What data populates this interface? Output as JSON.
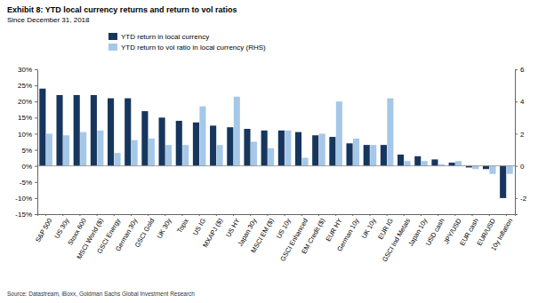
{
  "chart_data": {
    "type": "bar",
    "title": "Exhibit 8: YTD local currency returns and return to vol ratios",
    "subtitle": "Since December 31, 2018",
    "source": "Source: Datastream, iBoxx, Goldman Sachs Global Investment Research",
    "categories": [
      "S&P 500",
      "US 30y",
      "Stoxx 600",
      "MSCI World ($)",
      "GSCI Energy",
      "German 30y",
      "GSCI Gold",
      "UK 30y",
      "Topix",
      "US IG",
      "MXAPJ ($)",
      "US HY",
      "Japan 30y",
      "MSCI EM ($)",
      "US 10y",
      "GSCI Enhanced",
      "EM Credit ($)",
      "EUR HY",
      "German 10y",
      "UK 10y",
      "EUR IG",
      "GSCI Ind Metals",
      "Japan 10y",
      "USD cash",
      "JPY/USD",
      "EUR cash",
      "EUR/USD",
      "10y Inflation"
    ],
    "series": [
      {
        "name": "YTD return in local currency",
        "color": "#17365d",
        "values": [
          24,
          22,
          22,
          22,
          21,
          21,
          17,
          15,
          14,
          13.5,
          12.5,
          12,
          11.5,
          11,
          11,
          10.5,
          9.5,
          9,
          7,
          6.5,
          6.5,
          3.5,
          3,
          2,
          1,
          -0.5,
          -1,
          -10
        ]
      },
      {
        "name": "YTD return to vol ratio in local currency (RHS)",
        "color": "#a6c8e8",
        "axis": "y2",
        "values": [
          2.0,
          1.9,
          2.1,
          2.2,
          0.8,
          1.6,
          1.7,
          1.3,
          1.3,
          3.7,
          1.3,
          4.3,
          1.5,
          1.1,
          2.2,
          0.5,
          2.0,
          4.0,
          1.7,
          1.3,
          4.2,
          0.3,
          0.3,
          0.1,
          0.3,
          -0.2,
          -0.5,
          -0.5
        ]
      }
    ],
    "ylim": [
      -15,
      30
    ],
    "yticks": [
      {
        "value": -15,
        "label": "-15%"
      },
      {
        "value": -10,
        "label": "-10%"
      },
      {
        "value": -5,
        "label": "-5%"
      },
      {
        "value": 0,
        "label": "0%"
      },
      {
        "value": 5,
        "label": "5%"
      },
      {
        "value": 10,
        "label": "10%"
      },
      {
        "value": 15,
        "label": "15%"
      },
      {
        "value": 20,
        "label": "20%"
      },
      {
        "value": 25,
        "label": "25%"
      },
      {
        "value": 30,
        "label": "30%"
      }
    ],
    "y2lim": [
      -3,
      6
    ],
    "y2ticks": [
      -2,
      0,
      2,
      4,
      6
    ],
    "grid": false,
    "legend": "top"
  }
}
